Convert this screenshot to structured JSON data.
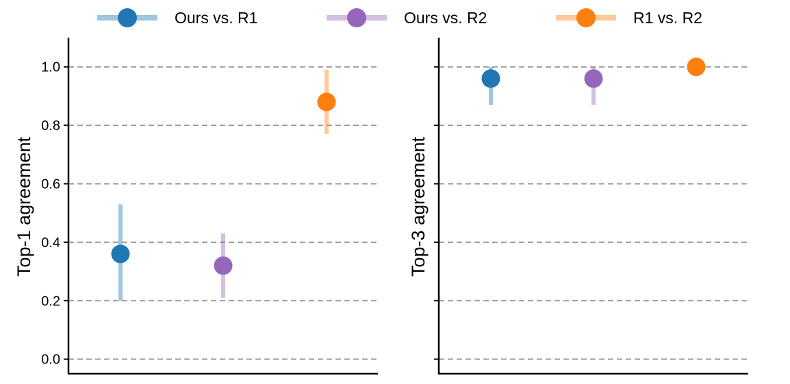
{
  "chart_data": {
    "type": "scatter",
    "legend": {
      "placement": "top-center",
      "entries": [
        {
          "label": "Ours vs. R1",
          "color": "#1f77b4"
        },
        {
          "label": "Ours vs. R2",
          "color": "#9467bd"
        },
        {
          "label": "R1 vs. R2",
          "color": "#ff7f0e"
        }
      ]
    },
    "panels": [
      {
        "ylabel": "Top-1 agreement",
        "ylim": [
          -0.05,
          1.1
        ],
        "yticks": [
          0.0,
          0.2,
          0.4,
          0.6,
          0.8,
          1.0
        ],
        "ytick_labels": [
          "0.0",
          "0.2",
          "0.4",
          "0.6",
          "0.8",
          "1.0"
        ],
        "grid": true,
        "series": [
          {
            "name": "Ours vs. R1",
            "value": 0.36,
            "low": 0.2,
            "high": 0.53
          },
          {
            "name": "Ours vs. R2",
            "value": 0.32,
            "low": 0.21,
            "high": 0.43
          },
          {
            "name": "R1 vs. R2",
            "value": 0.88,
            "low": 0.77,
            "high": 0.99
          }
        ]
      },
      {
        "ylabel": "Top-3 agreement",
        "ylim": [
          -0.05,
          1.1
        ],
        "yticks": [
          0.0,
          0.2,
          0.4,
          0.6,
          0.8,
          1.0
        ],
        "ytick_labels": [
          "",
          "",
          "",
          "",
          "",
          ""
        ],
        "grid": true,
        "series": [
          {
            "name": "Ours vs. R1",
            "value": 0.96,
            "low": 0.87,
            "high": 1.0
          },
          {
            "name": "Ours vs. R2",
            "value": 0.96,
            "low": 0.87,
            "high": 1.0
          },
          {
            "name": "R1 vs. R2",
            "value": 1.0,
            "low": 1.0,
            "high": 1.0
          }
        ]
      }
    ]
  }
}
